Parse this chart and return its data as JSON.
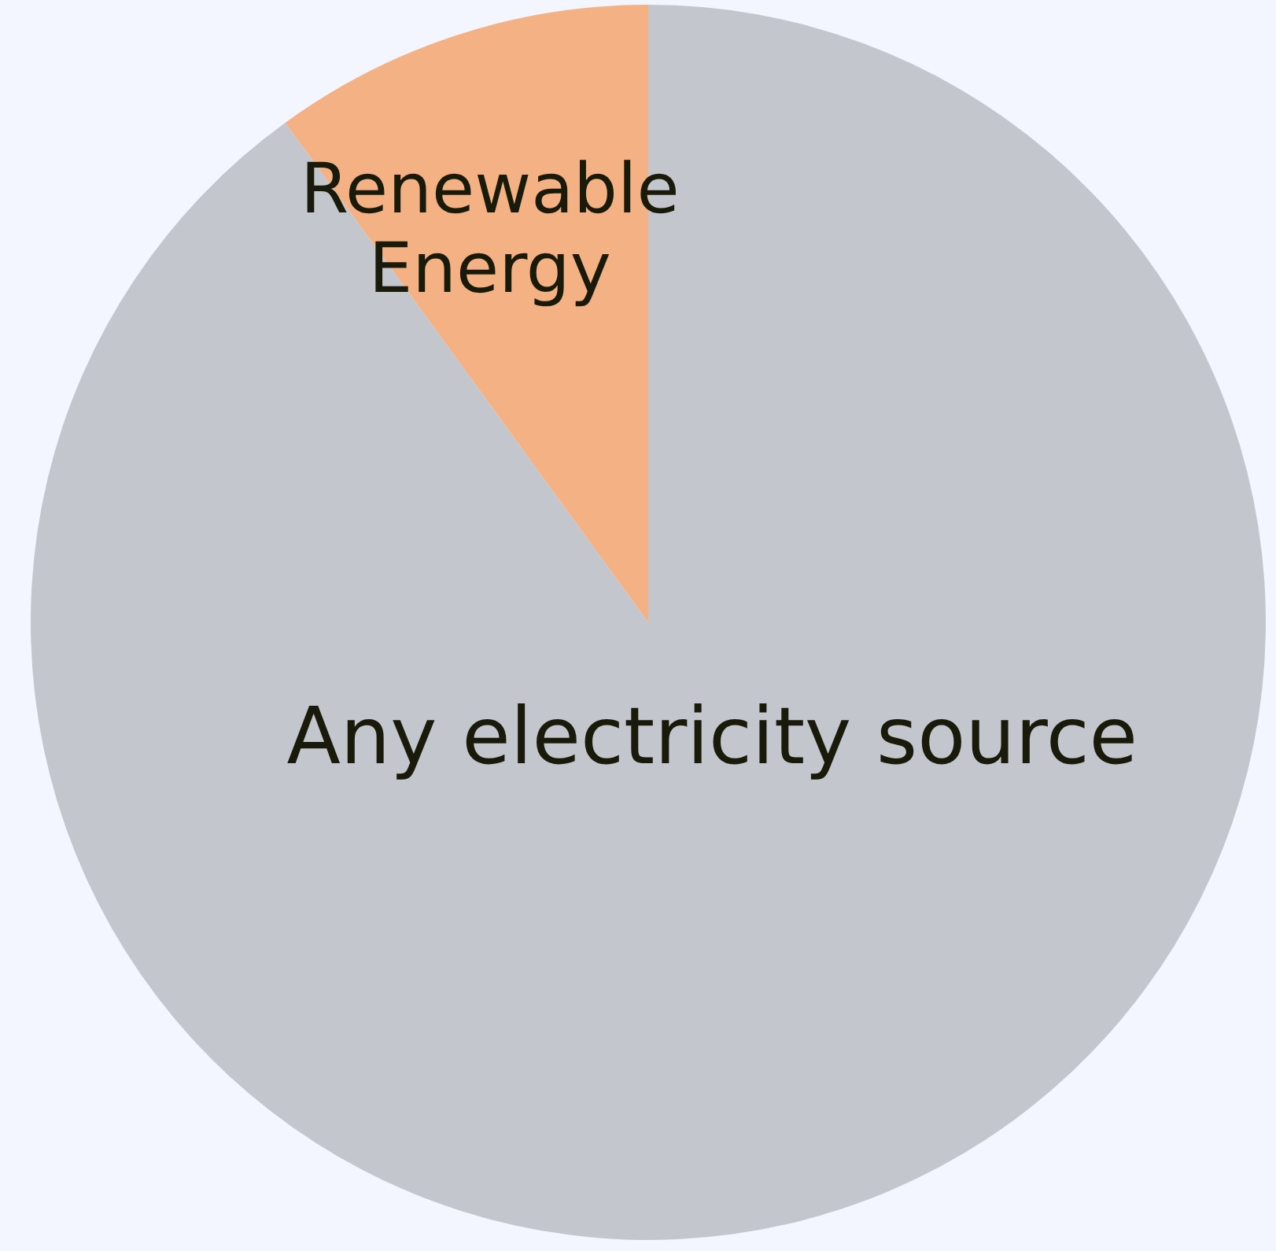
{
  "chart_data": {
    "type": "pie",
    "categories": [
      "Any electricity source",
      "Renewable Energy"
    ],
    "values": [
      90,
      10
    ],
    "colors": [
      "#c3c6cc",
      "#f4b183"
    ],
    "legend": false
  }
}
